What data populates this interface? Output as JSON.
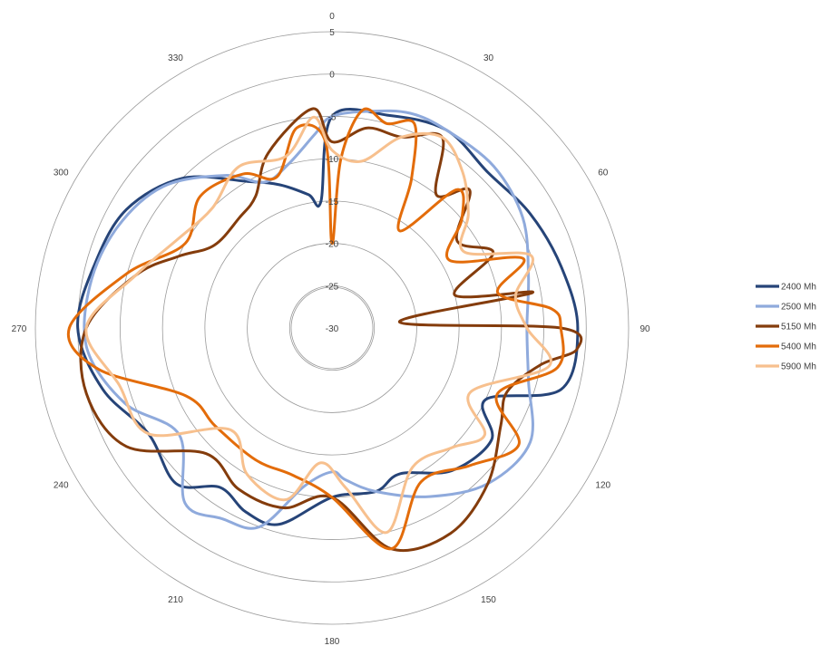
{
  "chart_data": {
    "type": "radar",
    "title": "",
    "angle_labels": [
      "0",
      "30",
      "60",
      "90",
      "120",
      "150",
      "180",
      "210",
      "240",
      "270",
      "300",
      "330"
    ],
    "radial_ticks": [
      5,
      0,
      -5,
      -10,
      -15,
      -20,
      -25,
      -30
    ],
    "rlim": [
      -30,
      5
    ],
    "grid": true,
    "legend_position": "right",
    "series": [
      {
        "name": "2400 Mh",
        "color": "#264478",
        "points": [
          [
            0,
            -5
          ],
          [
            15,
            -4
          ],
          [
            30,
            -3
          ],
          [
            45,
            -4
          ],
          [
            60,
            -3
          ],
          [
            75,
            -2
          ],
          [
            90,
            -1
          ],
          [
            105,
            -2
          ],
          [
            115,
            -10
          ],
          [
            125,
            -7
          ],
          [
            140,
            -8
          ],
          [
            155,
            -11
          ],
          [
            165,
            -10
          ],
          [
            180,
            -10
          ],
          [
            195,
            -6
          ],
          [
            205,
            -6
          ],
          [
            215,
            -7
          ],
          [
            225,
            -4
          ],
          [
            240,
            -5
          ],
          [
            255,
            -2
          ],
          [
            270,
            0
          ],
          [
            285,
            -1
          ],
          [
            300,
            -2
          ],
          [
            315,
            -5
          ],
          [
            330,
            -10
          ],
          [
            340,
            -12
          ],
          [
            350,
            -14
          ],
          [
            355,
            -15
          ]
        ]
      },
      {
        "name": "2500 Mh",
        "color": "#8FAADC",
        "points": [
          [
            0,
            -5
          ],
          [
            10,
            -4
          ],
          [
            20,
            -3
          ],
          [
            30,
            -3
          ],
          [
            45,
            -3
          ],
          [
            60,
            -4
          ],
          [
            75,
            -6
          ],
          [
            90,
            -7
          ],
          [
            105,
            -6
          ],
          [
            120,
            -3
          ],
          [
            135,
            -4
          ],
          [
            150,
            -7
          ],
          [
            165,
            -10
          ],
          [
            175,
            -12
          ],
          [
            180,
            -13
          ],
          [
            190,
            -11
          ],
          [
            200,
            -5
          ],
          [
            210,
            -4
          ],
          [
            220,
            -3
          ],
          [
            235,
            -8
          ],
          [
            250,
            -4
          ],
          [
            265,
            -1
          ],
          [
            280,
            -1
          ],
          [
            295,
            -2
          ],
          [
            310,
            -4
          ],
          [
            325,
            -8
          ],
          [
            335,
            -11
          ],
          [
            345,
            -10
          ],
          [
            355,
            -7
          ]
        ]
      },
      {
        "name": "5150 Mh",
        "color": "#843C0C",
        "points": [
          [
            0,
            -8
          ],
          [
            10,
            -6
          ],
          [
            20,
            -6
          ],
          [
            30,
            -4
          ],
          [
            38,
            -10
          ],
          [
            45,
            -7
          ],
          [
            55,
            -12
          ],
          [
            65,
            -9
          ],
          [
            75,
            -15
          ],
          [
            80,
            -6
          ],
          [
            85,
            -22
          ],
          [
            90,
            -3
          ],
          [
            95,
            -1
          ],
          [
            100,
            -5
          ],
          [
            110,
            -8
          ],
          [
            120,
            -7
          ],
          [
            135,
            -4
          ],
          [
            150,
            -2
          ],
          [
            165,
            -3
          ],
          [
            180,
            -10
          ],
          [
            195,
            -8
          ],
          [
            210,
            -8
          ],
          [
            225,
            -9
          ],
          [
            240,
            -2
          ],
          [
            255,
            0
          ],
          [
            270,
            -1
          ],
          [
            285,
            -6
          ],
          [
            295,
            -10
          ],
          [
            305,
            -13
          ],
          [
            320,
            -13
          ],
          [
            330,
            -12
          ],
          [
            340,
            -8
          ],
          [
            355,
            -4
          ]
        ]
      },
      {
        "name": "5400 Mh",
        "color": "#E36C0A",
        "points": [
          [
            0,
            -20
          ],
          [
            3,
            -10
          ],
          [
            8,
            -4
          ],
          [
            15,
            -5
          ],
          [
            22,
            -4
          ],
          [
            28,
            -10
          ],
          [
            35,
            -16
          ],
          [
            42,
            -8
          ],
          [
            50,
            -10
          ],
          [
            60,
            -14
          ],
          [
            70,
            -6
          ],
          [
            78,
            -10
          ],
          [
            85,
            -4
          ],
          [
            90,
            -3
          ],
          [
            100,
            -3
          ],
          [
            112,
            -9
          ],
          [
            122,
            -4
          ],
          [
            135,
            -7
          ],
          [
            150,
            -9
          ],
          [
            165,
            -3
          ],
          [
            180,
            -10
          ],
          [
            195,
            -12
          ],
          [
            210,
            -12
          ],
          [
            230,
            -12
          ],
          [
            245,
            -11
          ],
          [
            260,
            -2
          ],
          [
            270,
            1
          ],
          [
            285,
            -5
          ],
          [
            300,
            -10
          ],
          [
            315,
            -8
          ],
          [
            330,
            -9
          ],
          [
            340,
            -11
          ],
          [
            350,
            -6
          ],
          [
            358,
            -8
          ]
        ]
      },
      {
        "name": "5900 Mh",
        "color": "#F7C08E",
        "points": [
          [
            0,
            -9
          ],
          [
            10,
            -10
          ],
          [
            20,
            -6
          ],
          [
            30,
            -4
          ],
          [
            40,
            -6
          ],
          [
            50,
            -9
          ],
          [
            60,
            -12
          ],
          [
            70,
            -5
          ],
          [
            80,
            -8
          ],
          [
            90,
            -7
          ],
          [
            100,
            -4
          ],
          [
            115,
            -12
          ],
          [
            125,
            -8
          ],
          [
            135,
            -10
          ],
          [
            150,
            -11
          ],
          [
            165,
            -5
          ],
          [
            175,
            -11
          ],
          [
            185,
            -14
          ],
          [
            195,
            -9
          ],
          [
            210,
            -10
          ],
          [
            225,
            -13
          ],
          [
            240,
            -5
          ],
          [
            255,
            -4
          ],
          [
            270,
            -1
          ],
          [
            285,
            -6
          ],
          [
            300,
            -9
          ],
          [
            315,
            -10
          ],
          [
            330,
            -8
          ],
          [
            345,
            -9
          ],
          [
            355,
            -5
          ]
        ]
      }
    ]
  }
}
